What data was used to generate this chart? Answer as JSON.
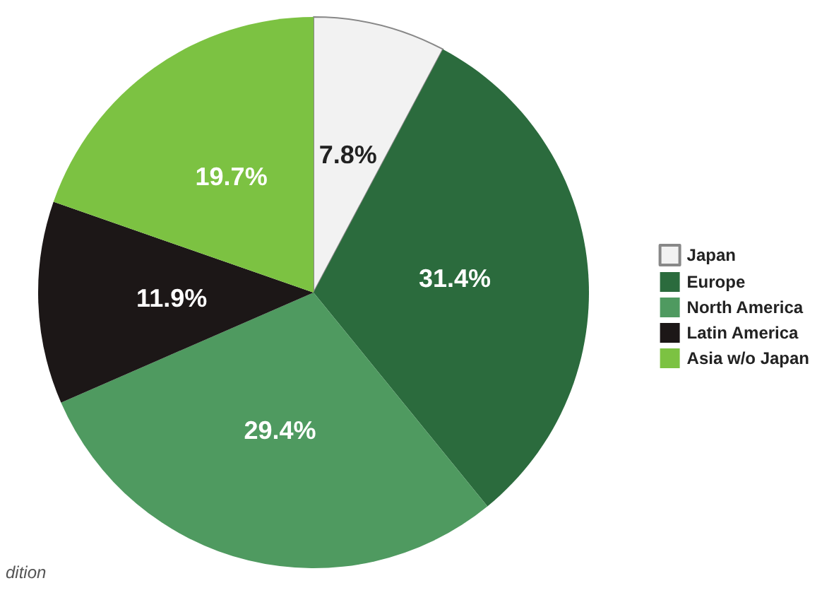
{
  "chart_data": {
    "type": "pie",
    "categories": [
      "Japan",
      "Europe",
      "North America",
      "Latin America",
      "Asia w/o Japan"
    ],
    "values": [
      7.8,
      31.4,
      29.4,
      11.9,
      19.7
    ],
    "colors": [
      "#f2f2f2",
      "#2b6b3d",
      "#4f9a60",
      "#1c1717",
      "#7cc242"
    ],
    "value_labels": [
      "7.8%",
      "31.4%",
      "29.4%",
      "11.9%",
      "19.7%"
    ],
    "legend": "right",
    "annotations": [
      "dition"
    ]
  }
}
